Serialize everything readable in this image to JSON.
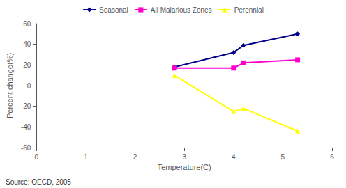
{
  "chart_data": {
    "type": "line",
    "x": [
      2.8,
      4.0,
      4.2,
      5.3
    ],
    "series": [
      {
        "name": "Seasonal",
        "color": "#00008B",
        "marker": "diamond",
        "values": [
          18,
          32,
          39,
          50
        ]
      },
      {
        "name": "All Malarious Zones",
        "color": "#FF00CC",
        "marker": "square",
        "values": [
          17,
          17,
          22,
          25
        ]
      },
      {
        "name": "Perennial",
        "color": "#FFFF00",
        "marker": "triangle",
        "values": [
          10,
          -25,
          -22,
          -44
        ]
      }
    ],
    "xlabel": "Temperature(C)",
    "ylabel": "Percent change(%)",
    "xlim": [
      0,
      6
    ],
    "ylim": [
      -60,
      60
    ],
    "xticks": [
      0,
      1,
      2,
      3,
      4,
      5,
      6
    ],
    "yticks": [
      -60,
      -40,
      -20,
      0,
      20,
      40,
      60
    ],
    "grid": false,
    "legend": "top",
    "annotations": [
      "Source: OECD, 2005"
    ]
  }
}
